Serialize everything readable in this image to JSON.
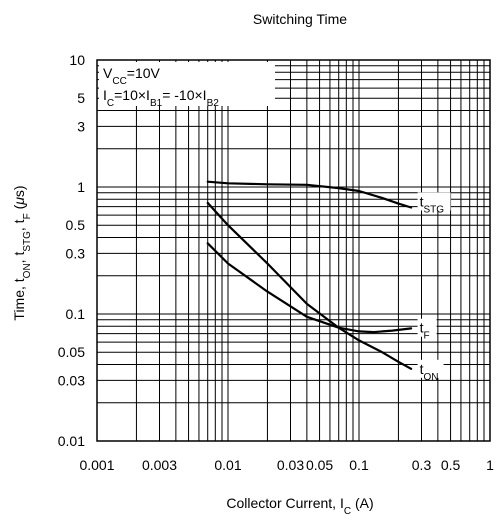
{
  "chart_data": {
    "type": "line",
    "title": "Switching Time",
    "xlabel": {
      "main": "Collector Current, I",
      "sub": "C",
      "tail": " (A)"
    },
    "ylabel": {
      "p1": "Time, t",
      "s1": "ON",
      "p2": ", t",
      "s2": "STG",
      "p3": ", t",
      "s3": "F",
      "p4": " (",
      "mu": "μ",
      "p5": "s)"
    },
    "x_scale": "log",
    "y_scale": "log",
    "xlim": [
      0.001,
      1
    ],
    "ylim": [
      0.01,
      10
    ],
    "grid": true,
    "x_tick_labels": [
      {
        "v": 0.001,
        "t": "0.001"
      },
      {
        "v": 0.003,
        "t": "0.003"
      },
      {
        "v": 0.01,
        "t": "0.01"
      },
      {
        "v": 0.03,
        "t": "0.03"
      },
      {
        "v": 0.05,
        "t": "0.05"
      },
      {
        "v": 0.1,
        "t": "0.1"
      },
      {
        "v": 0.3,
        "t": "0.3"
      },
      {
        "v": 0.5,
        "t": "0.5"
      },
      {
        "v": 1,
        "t": "1"
      }
    ],
    "y_tick_labels": [
      {
        "v": 10,
        "t": "10"
      },
      {
        "v": 5,
        "t": "5"
      },
      {
        "v": 3,
        "t": "3"
      },
      {
        "v": 1,
        "t": "1"
      },
      {
        "v": 0.5,
        "t": "0.5"
      },
      {
        "v": 0.3,
        "t": "0.3"
      },
      {
        "v": 0.1,
        "t": "0.1"
      },
      {
        "v": 0.05,
        "t": "0.05"
      },
      {
        "v": 0.03,
        "t": "0.03"
      },
      {
        "v": 0.01,
        "t": "0.01"
      }
    ],
    "conditions": [
      {
        "parts": [
          {
            "t": "V"
          },
          {
            "t": "CC",
            "sub": true
          },
          {
            "t": "=10V"
          }
        ]
      },
      {
        "parts": [
          {
            "t": "I"
          },
          {
            "t": "C",
            "sub": true
          },
          {
            "t": "=10×I"
          },
          {
            "t": "B1",
            "sub": true
          },
          {
            "t": "= -10×I"
          },
          {
            "t": "B2",
            "sub": true
          }
        ]
      }
    ],
    "series": [
      {
        "main": "t",
        "sub": "STG",
        "label_at": [
          0.28,
          0.77
        ],
        "x": [
          0.007,
          0.01,
          0.02,
          0.04,
          0.07,
          0.1,
          0.15,
          0.2,
          0.25
        ],
        "y": [
          1.1,
          1.07,
          1.05,
          1.04,
          0.98,
          0.93,
          0.82,
          0.74,
          0.69
        ]
      },
      {
        "main": "t",
        "sub": "F",
        "label_at": [
          0.28,
          0.078
        ],
        "x": [
          0.007,
          0.01,
          0.02,
          0.04,
          0.07,
          0.1,
          0.13,
          0.18,
          0.25
        ],
        "y": [
          0.36,
          0.25,
          0.15,
          0.095,
          0.078,
          0.073,
          0.072,
          0.074,
          0.077
        ]
      },
      {
        "main": "t",
        "sub": "ON",
        "label_at": [
          0.28,
          0.037
        ],
        "x": [
          0.007,
          0.01,
          0.02,
          0.04,
          0.07,
          0.1,
          0.15,
          0.2,
          0.25
        ],
        "y": [
          0.75,
          0.5,
          0.25,
          0.12,
          0.078,
          0.062,
          0.05,
          0.042,
          0.037
        ]
      }
    ]
  }
}
